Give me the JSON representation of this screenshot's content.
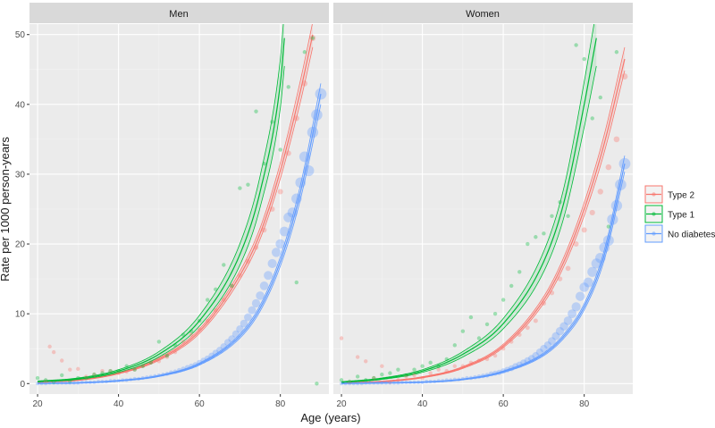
{
  "chart_data": {
    "type": "line",
    "xlabel": "Age (years)",
    "ylabel": "Rate per 1000 person-years",
    "xlim": [
      18,
      92
    ],
    "ylim": [
      -1.5,
      51.5
    ],
    "x_ticks": [
      20,
      40,
      60,
      80
    ],
    "y_ticks": [
      0,
      10,
      20,
      30,
      40,
      50
    ],
    "grid": true,
    "legend_position": "right",
    "legend": [
      {
        "name": "Type 2",
        "color": "#f8766d"
      },
      {
        "name": "Type 1",
        "color": "#00ba38"
      },
      {
        "name": "No diabetes",
        "color": "#619cff"
      }
    ],
    "panels": [
      {
        "strip": "Men",
        "series": [
          {
            "name": "Type 2",
            "fit": {
              "x": [
                20,
                30,
                40,
                50,
                60,
                70,
                75,
                80,
                85,
                88
              ],
              "y": [
                0.2,
                0.5,
                1.5,
                3.5,
                7.5,
                15.5,
                21.5,
                30.5,
                42,
                50
              ]
            },
            "points": {
              "x": [
                22,
                23,
                24,
                26,
                28,
                30,
                32,
                34,
                36,
                38,
                40,
                42,
                44,
                46,
                48,
                50,
                52,
                54,
                56,
                58,
                60,
                62,
                64,
                66,
                68,
                70,
                72,
                74,
                76,
                78,
                80,
                82,
                84,
                86,
                88
              ],
              "y": [
                0.3,
                5.3,
                4.5,
                3.3,
                2.0,
                2.1,
                1.0,
                1.3,
                1.8,
                1.8,
                1.5,
                1.7,
                2.0,
                2.5,
                3.0,
                3.2,
                3.8,
                4.5,
                6.0,
                7.0,
                7.8,
                9.0,
                10.5,
                12.0,
                14.0,
                15.5,
                17.5,
                19.5,
                22.0,
                25.0,
                27.5,
                33.0,
                38.0,
                43.0,
                49.5
              ]
            }
          },
          {
            "name": "Type 1",
            "fit": {
              "x": [
                20,
                30,
                40,
                50,
                60,
                70,
                75,
                80,
                81
              ],
              "y": [
                0.3,
                0.7,
                1.8,
                4.2,
                9.0,
                18.5,
                27.5,
                43,
                49.5
              ]
            },
            "points": {
              "x": [
                20,
                22,
                24,
                26,
                28,
                30,
                32,
                34,
                36,
                38,
                40,
                42,
                44,
                46,
                48,
                50,
                52,
                54,
                56,
                58,
                60,
                62,
                64,
                66,
                68,
                70,
                72,
                74,
                76,
                78,
                80,
                82,
                84,
                86,
                88,
                89
              ],
              "y": [
                0.8,
                0.5,
                0.2,
                1.2,
                0.3,
                0.8,
                0.8,
                1.3,
                1.5,
                1.8,
                1.8,
                2.5,
                2.0,
                2.5,
                3.0,
                6.0,
                4.0,
                5.5,
                7.0,
                7.5,
                9.0,
                12.0,
                13.5,
                17.0,
                14.0,
                28.0,
                28.5,
                39.0,
                31.5,
                37.5,
                33.5,
                42.5,
                14.5,
                47.5,
                49.5,
                0.0
              ]
            }
          },
          {
            "name": "No diabetes",
            "fit": {
              "x": [
                20,
                30,
                40,
                50,
                60,
                70,
                75,
                80,
                85,
                90
              ],
              "y": [
                0.0,
                0.1,
                0.4,
                1.1,
                2.8,
                6.8,
                10.8,
                17.5,
                27.5,
                41.5
              ]
            },
            "points": {
              "x": [
                20,
                21,
                22,
                23,
                24,
                25,
                26,
                27,
                28,
                29,
                30,
                31,
                32,
                33,
                34,
                35,
                36,
                37,
                38,
                39,
                40,
                41,
                42,
                43,
                44,
                45,
                46,
                47,
                48,
                49,
                50,
                51,
                52,
                53,
                54,
                55,
                56,
                57,
                58,
                59,
                60,
                61,
                62,
                63,
                64,
                65,
                66,
                67,
                68,
                69,
                70,
                71,
                72,
                73,
                74,
                75,
                76,
                77,
                78,
                79,
                80,
                81,
                82,
                83,
                84,
                85,
                86,
                87,
                88,
                89,
                90
              ],
              "y": [
                0.0,
                0.0,
                0.0,
                0.1,
                0.1,
                0.1,
                0.1,
                0.1,
                0.1,
                0.1,
                0.1,
                0.2,
                0.2,
                0.2,
                0.2,
                0.3,
                0.3,
                0.3,
                0.4,
                0.4,
                0.4,
                0.5,
                0.5,
                0.6,
                0.7,
                0.7,
                0.8,
                0.9,
                1.0,
                1.1,
                1.2,
                1.3,
                1.4,
                1.6,
                1.7,
                1.9,
                2.1,
                2.3,
                2.5,
                2.7,
                3.0,
                3.3,
                3.6,
                4.0,
                4.4,
                4.8,
                5.3,
                5.9,
                6.4,
                7.1,
                7.8,
                8.6,
                9.5,
                10.5,
                11.5,
                12.6,
                14.0,
                15.5,
                17.2,
                18.8,
                20.0,
                21.8,
                23.8,
                24.5,
                26.5,
                28.8,
                32.5,
                30.5,
                36.0,
                38.5,
                41.5
              ]
            }
          }
        ]
      },
      {
        "strip": "Women",
        "series": [
          {
            "name": "Type 2",
            "fit": {
              "x": [
                20,
                30,
                40,
                50,
                60,
                70,
                75,
                80,
                85,
                90
              ],
              "y": [
                0.1,
                0.3,
                0.9,
                2.3,
                5.4,
                12.0,
                17.5,
                25.0,
                34.5,
                46.5
              ]
            },
            "points": {
              "x": [
                20,
                22,
                24,
                26,
                28,
                30,
                32,
                34,
                36,
                38,
                40,
                42,
                44,
                46,
                48,
                50,
                52,
                54,
                56,
                58,
                60,
                62,
                64,
                66,
                68,
                70,
                72,
                74,
                76,
                78,
                80,
                82,
                84,
                86,
                88,
                90
              ],
              "y": [
                6.5,
                0.2,
                3.8,
                3.2,
                0.8,
                2.5,
                0.2,
                0.5,
                1.0,
                1.2,
                0.8,
                1.5,
                2.0,
                1.8,
                2.5,
                2.5,
                3.0,
                3.3,
                3.5,
                4.0,
                5.0,
                6.0,
                7.0,
                8.0,
                9.0,
                11.5,
                13.0,
                15.0,
                16.5,
                20.0,
                22.0,
                24.5,
                27.5,
                31.0,
                35.0,
                44.0
              ]
            }
          },
          {
            "name": "Type 1",
            "fit": {
              "x": [
                20,
                30,
                40,
                50,
                60,
                70,
                75,
                80,
                83
              ],
              "y": [
                0.2,
                0.7,
                1.8,
                4.2,
                8.6,
                17.5,
                26.0,
                40.0,
                49.5
              ]
            },
            "points": {
              "x": [
                20,
                22,
                24,
                26,
                28,
                30,
                32,
                34,
                36,
                38,
                40,
                42,
                44,
                46,
                48,
                50,
                52,
                54,
                56,
                58,
                60,
                62,
                64,
                66,
                68,
                70,
                72,
                74,
                76,
                78,
                80,
                82,
                84,
                86,
                88
              ],
              "y": [
                0.5,
                0.3,
                1.0,
                0.5,
                0.8,
                1.3,
                1.5,
                2.0,
                1.2,
                2.0,
                2.5,
                3.0,
                2.5,
                3.5,
                5.5,
                7.5,
                9.5,
                6.5,
                8.5,
                10.0,
                12.0,
                14.0,
                16.0,
                20.0,
                21.0,
                21.5,
                24.0,
                26.0,
                24.0,
                48.5,
                46.5,
                38.0,
                41.0,
                22.5,
                47.5
              ]
            }
          },
          {
            "name": "No diabetes",
            "fit": {
              "x": [
                20,
                30,
                40,
                50,
                60,
                70,
                75,
                80,
                85,
                90
              ],
              "y": [
                0.0,
                0.1,
                0.2,
                0.6,
                1.7,
                4.2,
                6.8,
                11.0,
                18.5,
                31.5
              ]
            },
            "points": {
              "x": [
                20,
                21,
                22,
                23,
                24,
                25,
                26,
                27,
                28,
                29,
                30,
                31,
                32,
                33,
                34,
                35,
                36,
                37,
                38,
                39,
                40,
                41,
                42,
                43,
                44,
                45,
                46,
                47,
                48,
                49,
                50,
                51,
                52,
                53,
                54,
                55,
                56,
                57,
                58,
                59,
                60,
                61,
                62,
                63,
                64,
                65,
                66,
                67,
                68,
                69,
                70,
                71,
                72,
                73,
                74,
                75,
                76,
                77,
                78,
                79,
                80,
                81,
                82,
                83,
                84,
                85,
                86,
                87,
                88,
                89,
                90
              ],
              "y": [
                0.0,
                0.0,
                0.0,
                0.0,
                0.0,
                0.0,
                0.1,
                0.1,
                0.1,
                0.1,
                0.1,
                0.1,
                0.1,
                0.1,
                0.1,
                0.2,
                0.2,
                0.2,
                0.2,
                0.2,
                0.2,
                0.3,
                0.3,
                0.3,
                0.4,
                0.4,
                0.5,
                0.5,
                0.6,
                0.6,
                0.7,
                0.8,
                0.8,
                0.9,
                1.0,
                1.1,
                1.2,
                1.4,
                1.5,
                1.6,
                1.8,
                2.0,
                2.2,
                2.5,
                2.7,
                3.0,
                3.3,
                3.6,
                4.0,
                4.5,
                5.0,
                5.5,
                6.1,
                6.8,
                7.5,
                8.2,
                9.0,
                10.0,
                11.0,
                12.5,
                13.8,
                14.5,
                16.0,
                17.2,
                18.0,
                19.5,
                20.5,
                23.5,
                25.5,
                28.5,
                31.5
              ]
            }
          }
        ]
      }
    ]
  }
}
